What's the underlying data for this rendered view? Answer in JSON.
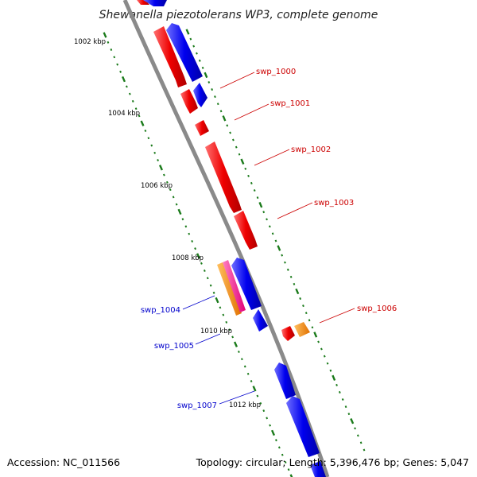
{
  "title": "Shewanella piezotolerans WP3, complete genome",
  "footer": {
    "accession": "Accession: NC_011566",
    "info": "Topology: circular; Length: 5,396,476 bp; Genes: 5,047"
  },
  "colors": {
    "backbone": "#888888",
    "ruler": "#1a7a1a",
    "forward": "#ee0000",
    "reverse": "#0000ee",
    "orange": "#ff8c00",
    "pink": "#ff1493",
    "label_red": "#cc0000",
    "label_blue": "#0000cc"
  },
  "ruler_labels": [
    "1002 kbp",
    "1004 kbp",
    "1006 kbp",
    "1008 kbp",
    "1010 kbp",
    "1012 kbp"
  ],
  "gene_labels": [
    {
      "text": "swp_1000",
      "color": "label_red"
    },
    {
      "text": "swp_1001",
      "color": "label_red"
    },
    {
      "text": "swp_1002",
      "color": "label_red"
    },
    {
      "text": "swp_1003",
      "color": "label_red"
    },
    {
      "text": "swp_1004",
      "color": "label_blue"
    },
    {
      "text": "swp_1005",
      "color": "label_blue"
    },
    {
      "text": "swp_1006",
      "color": "label_red"
    },
    {
      "text": "swp_1007",
      "color": "label_blue"
    }
  ]
}
